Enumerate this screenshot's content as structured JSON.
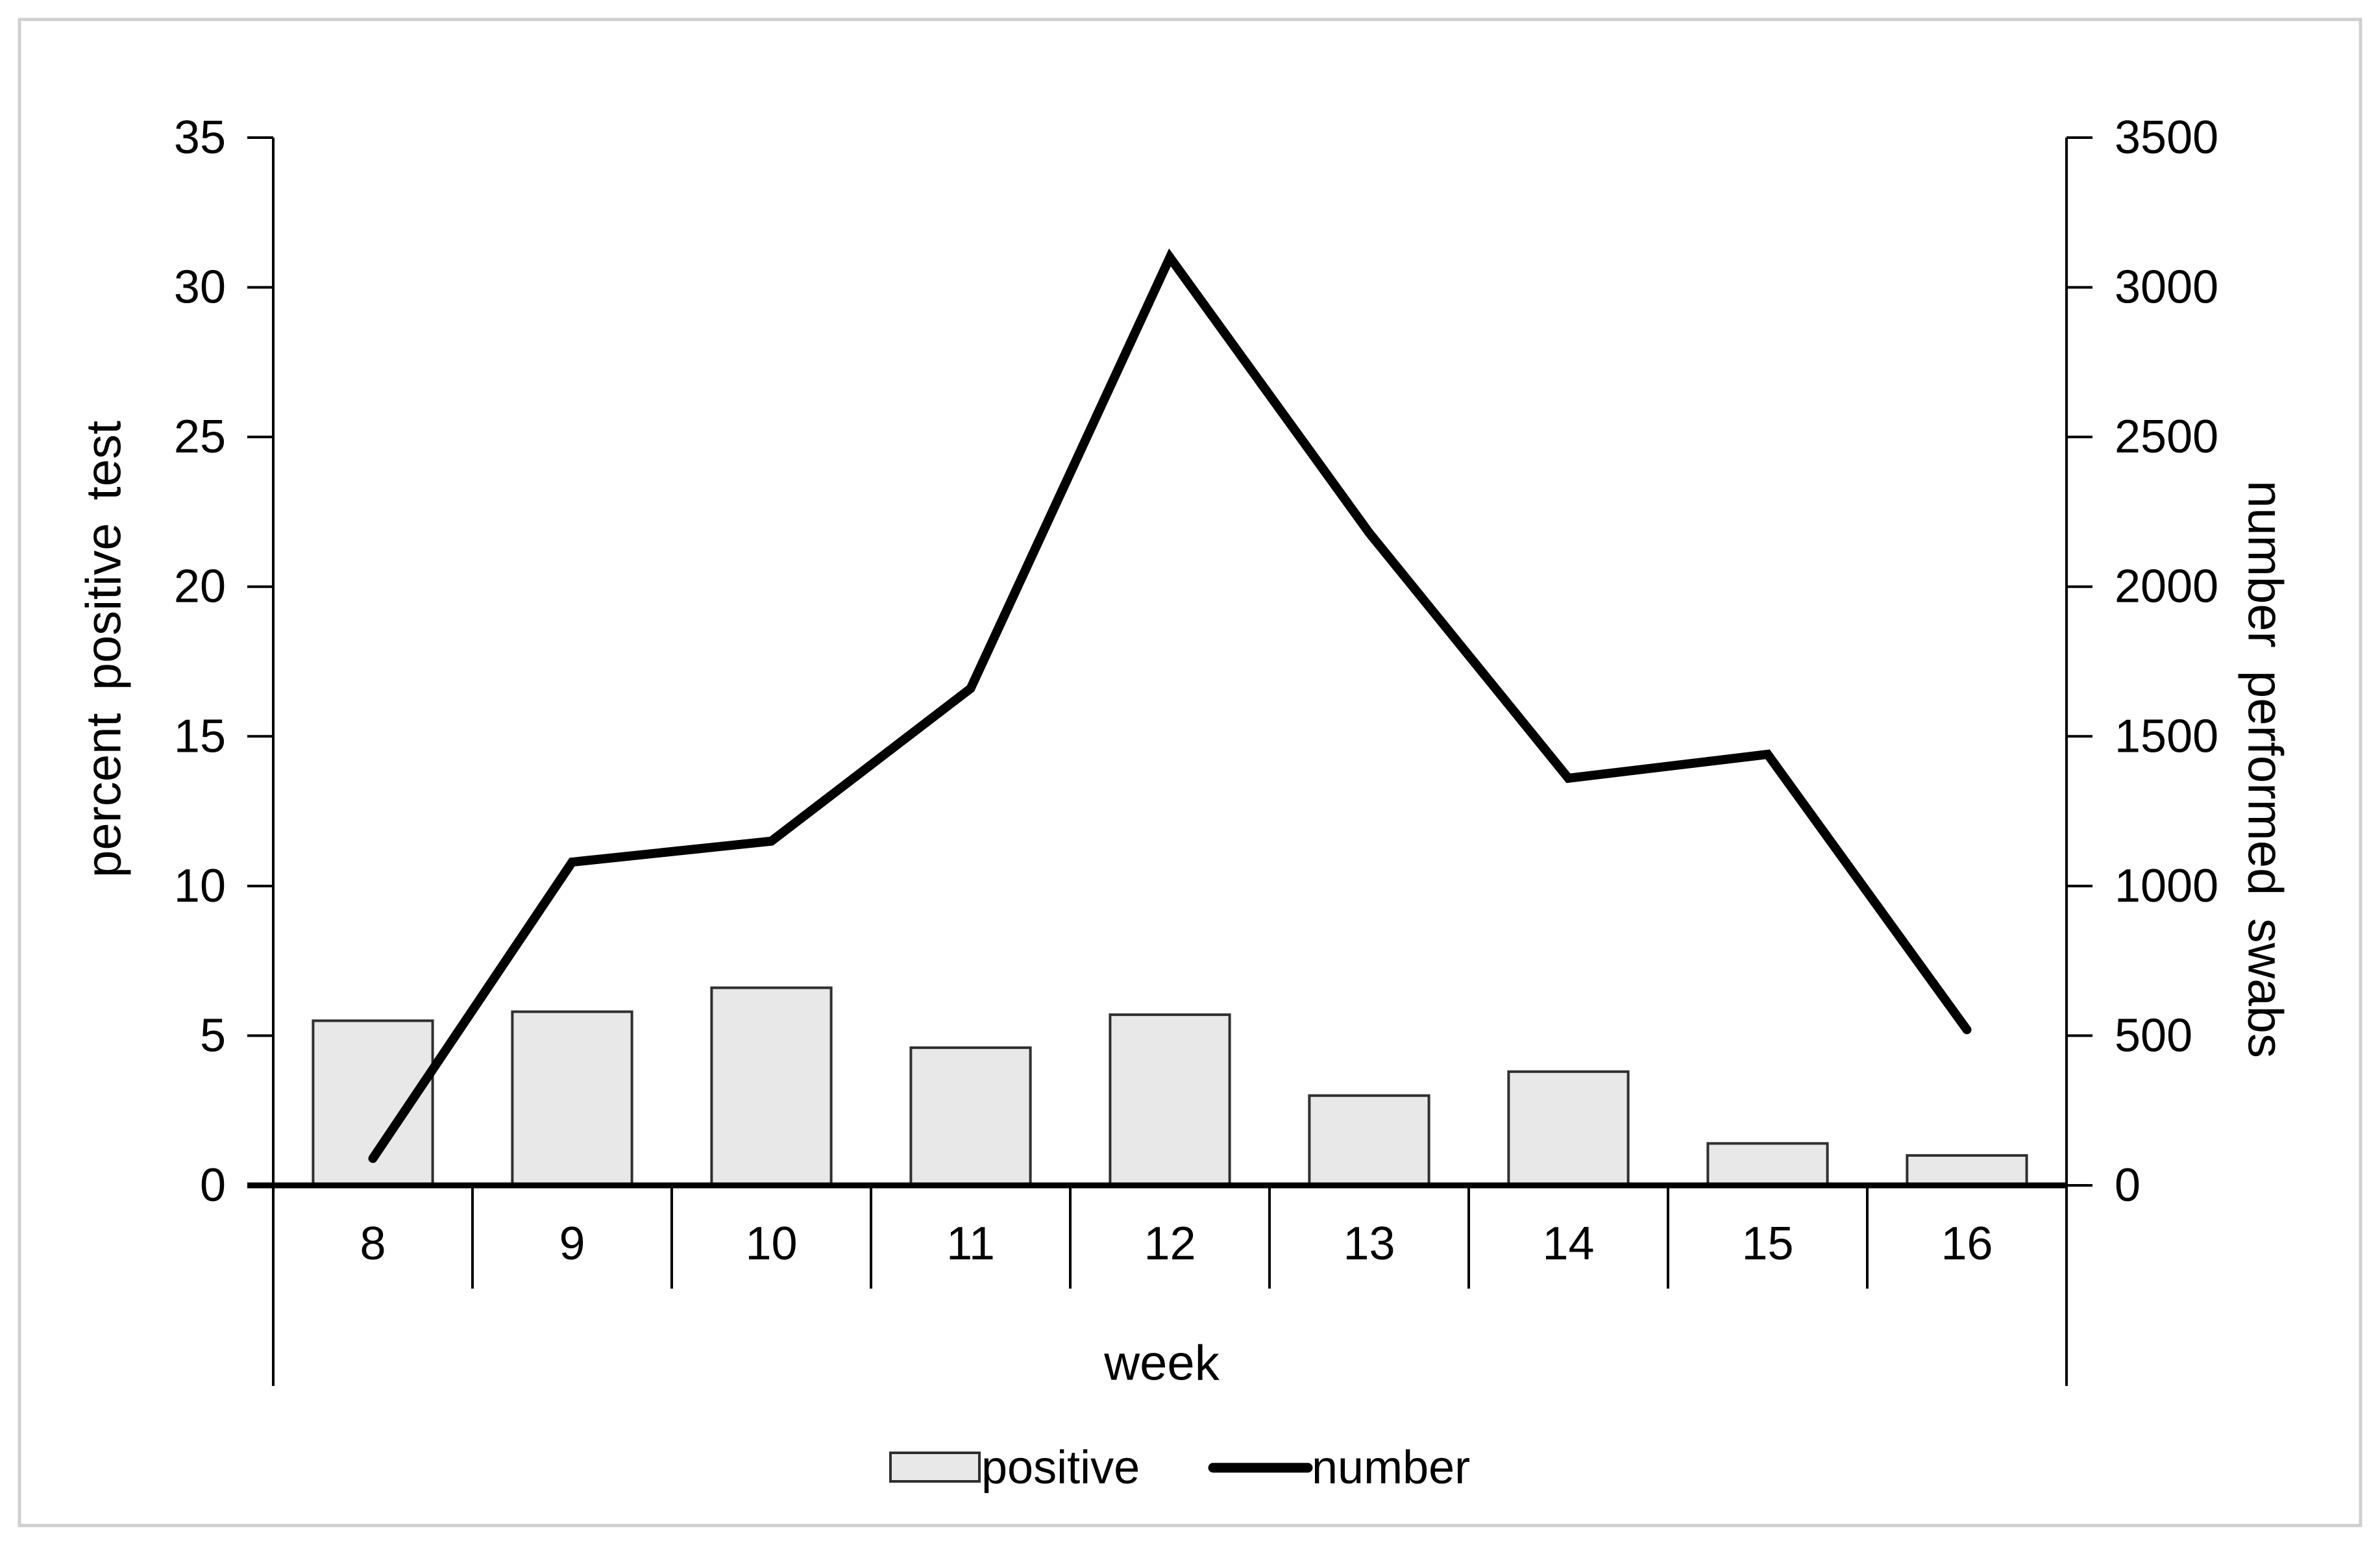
{
  "figure": {
    "background_color": "#ffffff",
    "border_color": "#cfcfcf"
  },
  "chart_data": {
    "type": "combo-bar-line",
    "categories": [
      "8",
      "9",
      "10",
      "11",
      "12",
      "13",
      "14",
      "15",
      "16"
    ],
    "series": [
      {
        "name": "positive",
        "type": "bar",
        "axis": "left",
        "values": [
          5.5,
          5.8,
          6.6,
          4.6,
          5.7,
          3.0,
          3.8,
          1.4,
          1.0
        ],
        "fill": "#e8e8e8",
        "stroke": "#2f2f2f"
      },
      {
        "name": "number",
        "type": "line",
        "axis": "right",
        "values": [
          90,
          1080,
          1150,
          1660,
          3100,
          2180,
          1360,
          1440,
          520
        ],
        "color": "#000000"
      }
    ],
    "xlabel": "week",
    "left_axis": {
      "label": "percent positive test",
      "min": 0,
      "max": 35,
      "step": 5,
      "tick_labels": [
        "0",
        "5",
        "10",
        "15",
        "20",
        "25",
        "30",
        "35"
      ]
    },
    "right_axis": {
      "label": "number performed swabs",
      "min": 0,
      "max": 3500,
      "step": 500,
      "tick_labels": [
        "0",
        "500",
        "1000",
        "1500",
        "2000",
        "2500",
        "3000",
        "3500"
      ]
    },
    "legend": {
      "position": "bottom",
      "entries": [
        {
          "label": "positive",
          "marker": "bar-swatch"
        },
        {
          "label": "number",
          "marker": "line-swatch"
        }
      ]
    },
    "grid": false,
    "axis_color": "#000000"
  }
}
